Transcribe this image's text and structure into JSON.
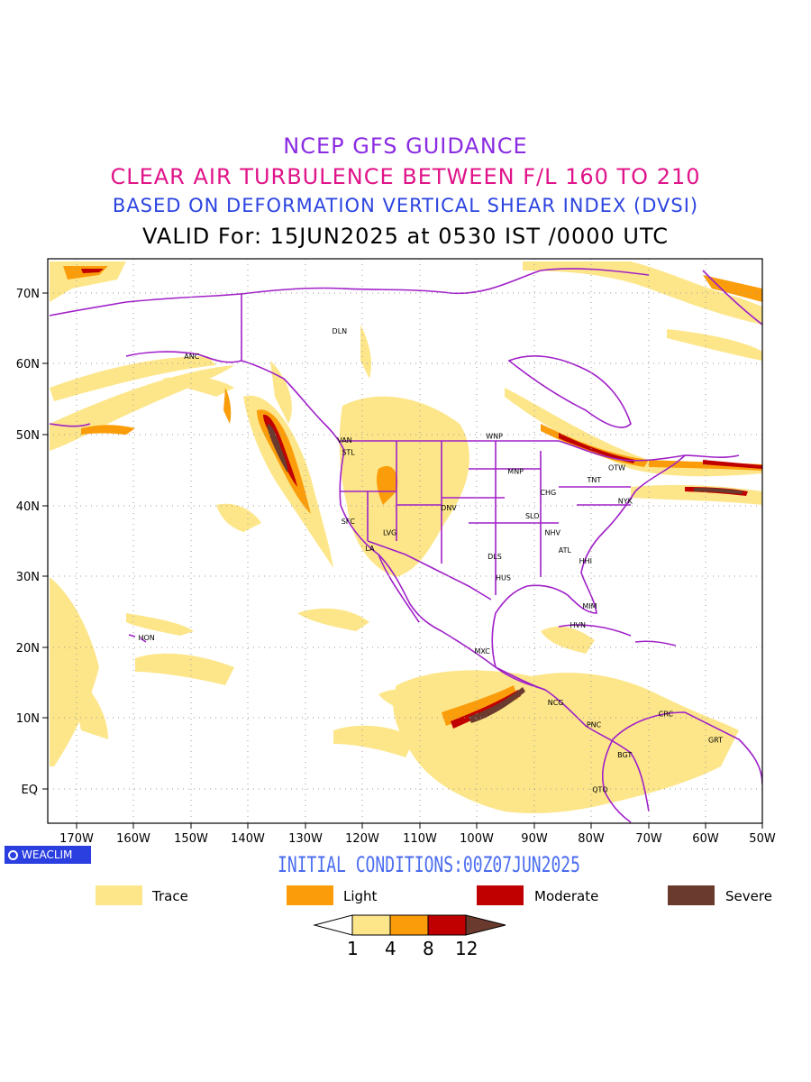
{
  "titles": {
    "line1": "NCEP GFS GUIDANCE",
    "line2": "CLEAR AIR TURBULENCE BETWEEN F/L 160 TO 210",
    "line3": "BASED ON DEFORMATION VERTICAL SHEAR INDEX (DVSI)",
    "line4": "VALID For: 15JUN2025 at 0530 IST /0000 UTC"
  },
  "colors": {
    "line1": "#8a2be2",
    "line2": "#e0148a",
    "line3": "#2b44e0",
    "line4": "#000000",
    "init": "#4a6cf0",
    "borders": "#a020c8",
    "trace": "#fde68a",
    "light": "#fb9d0a",
    "moderate": "#c00000",
    "severe": "#6b3a2e"
  },
  "axes": {
    "lat_labels": [
      "70N",
      "60N",
      "50N",
      "40N",
      "30N",
      "20N",
      "10N",
      "EQ"
    ],
    "lon_labels": [
      "170W",
      "160W",
      "150W",
      "140W",
      "130W",
      "120W",
      "110W",
      "100W",
      "90W",
      "80W",
      "70W",
      "60W",
      "50W"
    ]
  },
  "cities": [
    {
      "name": "ANC",
      "lon": -149.9,
      "lat": 61.2
    },
    {
      "name": "DLN",
      "lon": -124.0,
      "lat": 64.8
    },
    {
      "name": "VAN",
      "lon": -123.1,
      "lat": 49.3
    },
    {
      "name": "STL",
      "lon": -122.3,
      "lat": 47.6
    },
    {
      "name": "WNP",
      "lon": -97.1,
      "lat": 49.9
    },
    {
      "name": "OTW",
      "lon": -75.7,
      "lat": 45.4
    },
    {
      "name": "MNP",
      "lon": -93.3,
      "lat": 44.9
    },
    {
      "name": "TNT",
      "lon": -79.4,
      "lat": 43.7
    },
    {
      "name": "CHG",
      "lon": -87.6,
      "lat": 41.9
    },
    {
      "name": "NYK",
      "lon": -74.0,
      "lat": 40.7
    },
    {
      "name": "DNV",
      "lon": -105.0,
      "lat": 39.7
    },
    {
      "name": "SFC",
      "lon": -122.4,
      "lat": 37.8
    },
    {
      "name": "SLO",
      "lon": -90.2,
      "lat": 38.6
    },
    {
      "name": "LVG",
      "lon": -115.1,
      "lat": 36.2
    },
    {
      "name": "NHV",
      "lon": -86.8,
      "lat": 36.2
    },
    {
      "name": "LA",
      "lon": -118.2,
      "lat": 34.0
    },
    {
      "name": "ATL",
      "lon": -84.4,
      "lat": 33.7
    },
    {
      "name": "DLS",
      "lon": -96.8,
      "lat": 32.8
    },
    {
      "name": "HHI",
      "lon": -80.8,
      "lat": 32.2
    },
    {
      "name": "HUS",
      "lon": -95.4,
      "lat": 29.8
    },
    {
      "name": "MIM",
      "lon": -80.2,
      "lat": 25.8
    },
    {
      "name": "HVN",
      "lon": -82.4,
      "lat": 23.1
    },
    {
      "name": "HON",
      "lon": -157.9,
      "lat": 21.3
    },
    {
      "name": "MXC",
      "lon": -99.1,
      "lat": 19.4
    },
    {
      "name": "NCG",
      "lon": -86.3,
      "lat": 12.1
    },
    {
      "name": "CRC",
      "lon": -66.9,
      "lat": 10.5
    },
    {
      "name": "PNC",
      "lon": -79.5,
      "lat": 9.0
    },
    {
      "name": "GRT",
      "lon": -58.2,
      "lat": 6.8
    },
    {
      "name": "BGT",
      "lon": -74.1,
      "lat": 4.7
    },
    {
      "name": "QTO",
      "lon": -78.5,
      "lat": -0.2
    }
  ],
  "logo": "WEACLIM",
  "initial_conditions": "INITIAL CONDITIONS:00Z07JUN2025",
  "legend": {
    "trace": "Trace",
    "light": "Light",
    "moderate": "Moderate",
    "severe": "Severe"
  },
  "colorbar": {
    "ticks": [
      "1",
      "4",
      "8",
      "12"
    ]
  },
  "map_extent": {
    "lon_min": -175,
    "lon_max": -50,
    "lat_min": -5,
    "lat_max": 75
  }
}
